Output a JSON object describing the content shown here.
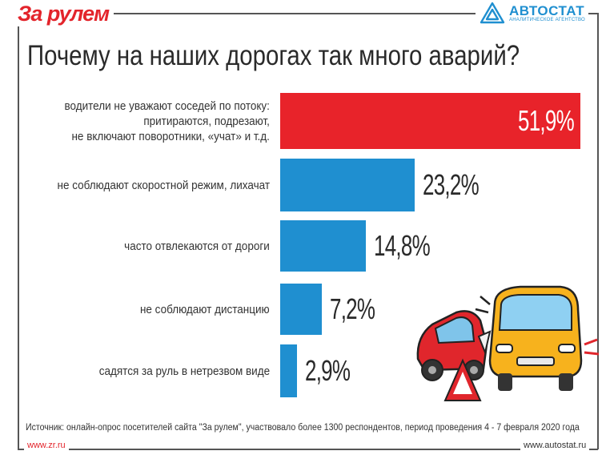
{
  "header": {
    "logo_left": "За рулем",
    "logo_right_name": "АВТОСТАТ",
    "logo_right_sub": "АНАЛИТИЧЕСКОЕ АГЕНТСТВО"
  },
  "colors": {
    "highlight": "#e8232a",
    "bar": "#1f8fd0",
    "text": "#2a2a2a"
  },
  "chart_data": {
    "type": "bar",
    "orientation": "horizontal",
    "title": "Почему на наших дорогах так много аварий?",
    "categories": [
      "водители не уважают соседей по потоку: притираются, подрезают, не включают поворотники, «учат» и т.д.",
      "не соблюдают скоростной режим, лихачат",
      "часто отвлекаются от дороги",
      "не соблюдают дистанцию",
      "садятся за руль в нетрезвом виде"
    ],
    "category_lines": [
      [
        "водители не уважают соседей по потоку:",
        "притираются, подрезают,",
        "не включают поворотники, «учат» и т.д."
      ],
      [
        "не соблюдают скоростной режим, лихачат"
      ],
      [
        "часто отвлекаются от дороги"
      ],
      [
        "не соблюдают дистанцию"
      ],
      [
        "садятся за руль в нетрезвом виде"
      ]
    ],
    "values": [
      51.9,
      23.2,
      14.8,
      7.2,
      2.9
    ],
    "labels": [
      "51,9%",
      "23,2%",
      "14,8%",
      "7,2%",
      "2,9%"
    ],
    "xlim": [
      0,
      51.9
    ],
    "legend": "none",
    "grid": false
  },
  "footer": {
    "source": "Источник: онлайн-опрос посетителей сайта \"За рулем\", участвовало более 1300 респондентов, период проведения 4 - 7 февраля 2020 года",
    "left_url": "www.zr.ru",
    "right_url": "www.autostat.ru"
  }
}
